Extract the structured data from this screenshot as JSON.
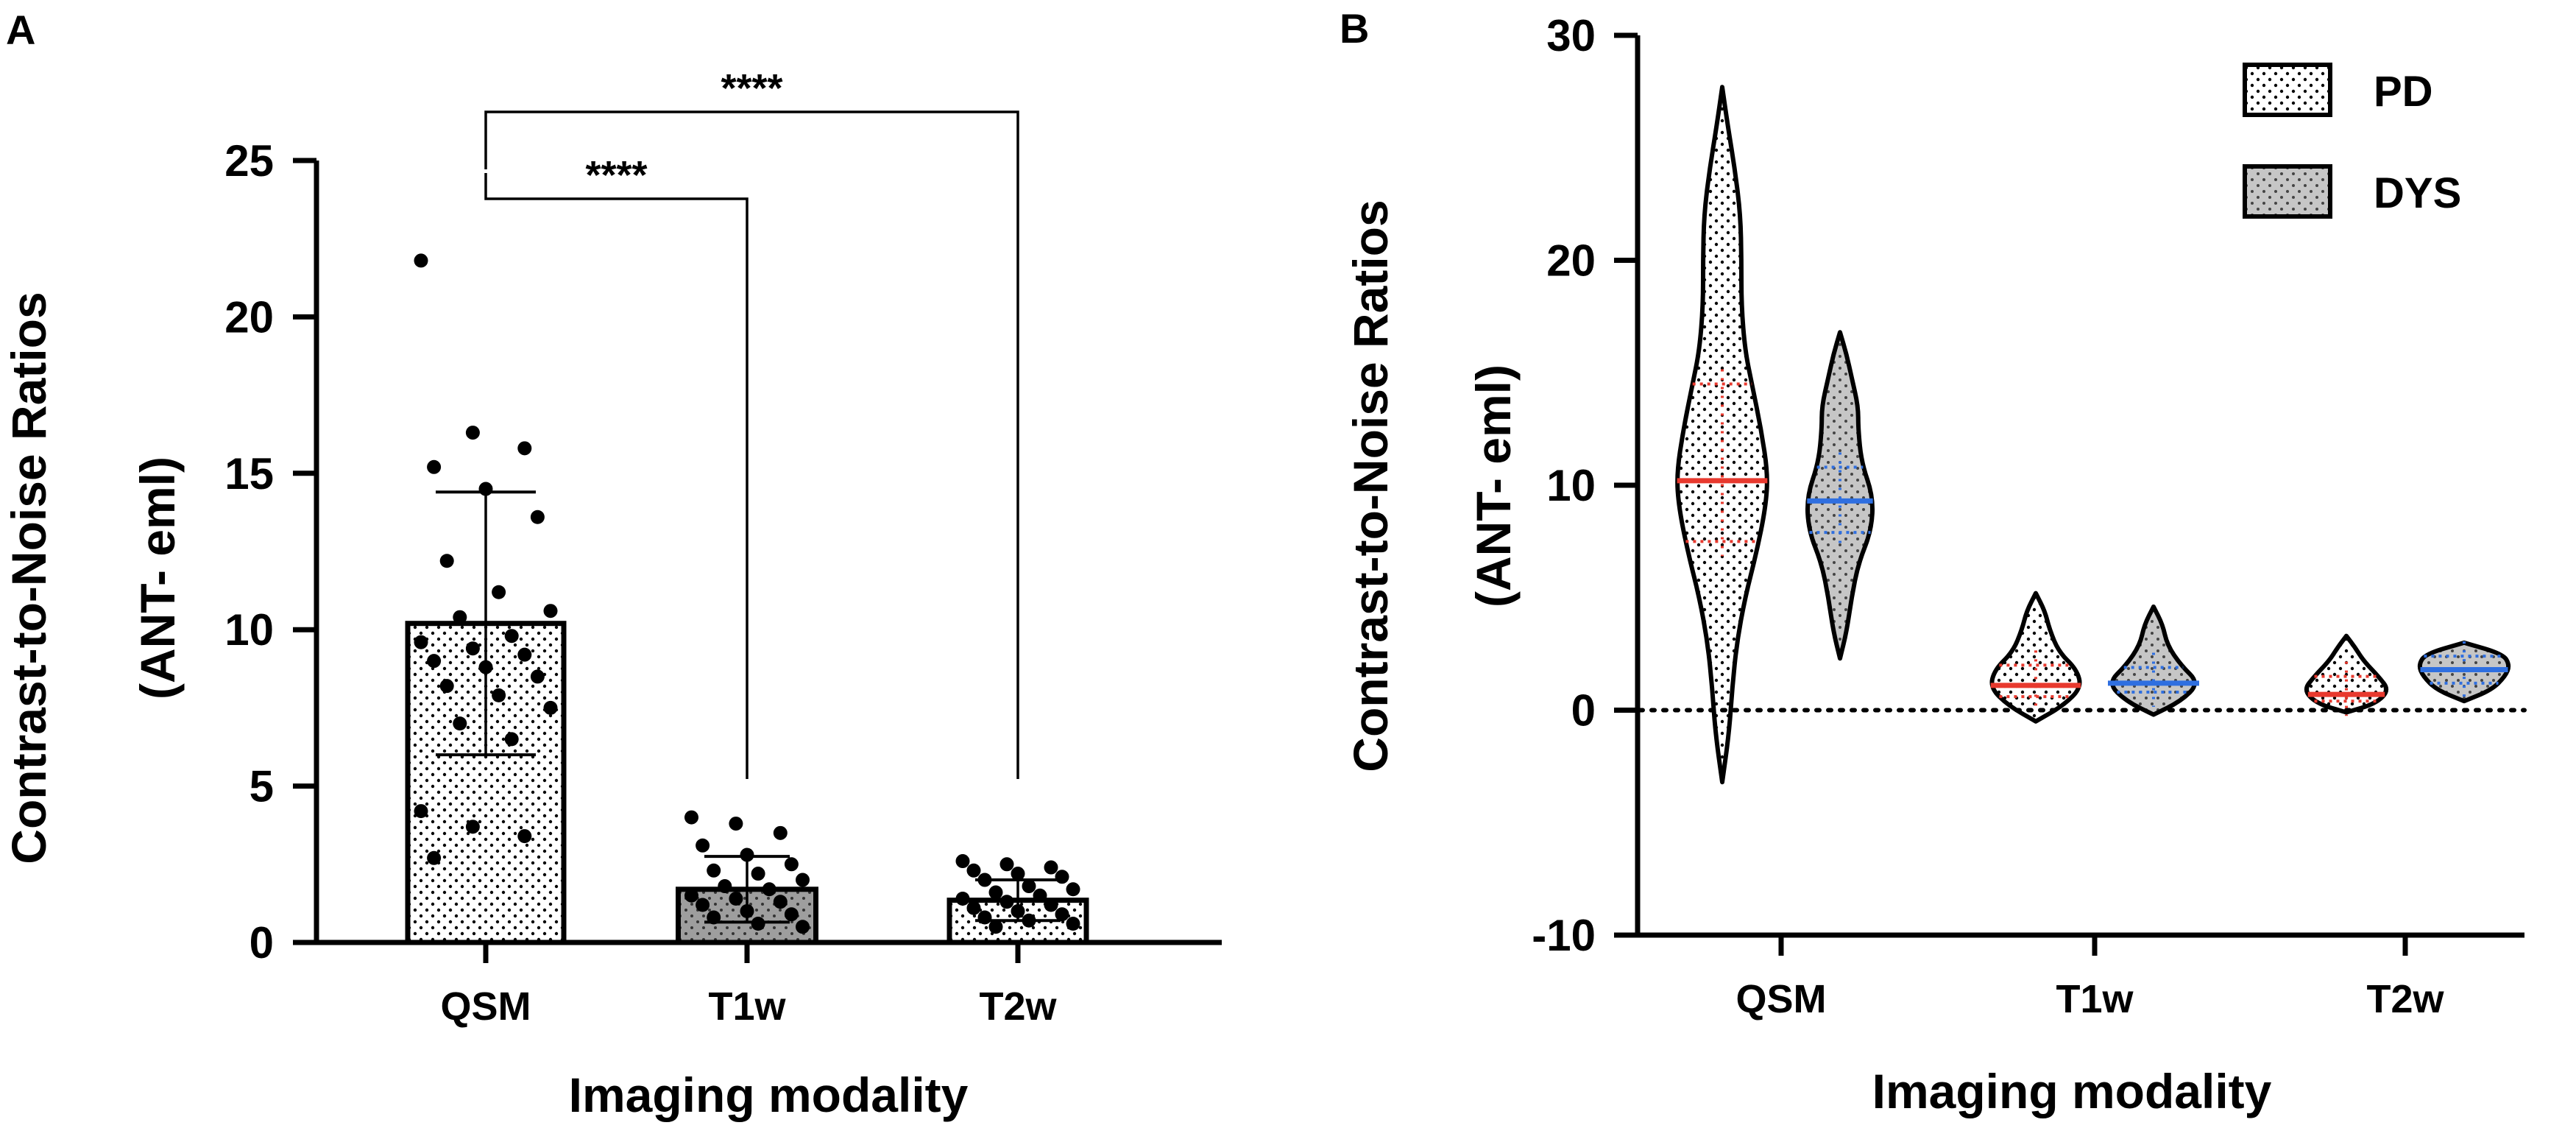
{
  "colors": {
    "ink": "#000000",
    "bar_qsm_fill": "#ffffff",
    "bar_t1w_fill": "#9e9e9e",
    "bar_t2w_fill": "#ffffff",
    "violin_pd_fill": "#ffffff",
    "violin_dys_fill": "#c6c6c6",
    "pd_accent": "#e8392e",
    "dys_accent": "#2f6fe0"
  },
  "chart_data": [
    {
      "panel_label": "A",
      "type": "bar",
      "title": "",
      "xlabel": "Imaging modality",
      "ylabel_line1": "Contrast-to-Noise Ratios",
      "ylabel_line2": "(ANT- eml)",
      "ylim": [
        0,
        25
      ],
      "yticks": [
        0,
        5,
        10,
        15,
        20,
        25
      ],
      "ytick_labels": [
        "0",
        "5",
        "10",
        "15",
        "20",
        "25"
      ],
      "grid": false,
      "categories": [
        "QSM",
        "T1w",
        "T2w"
      ],
      "values": [
        10.2,
        1.7,
        1.35
      ],
      "sd": [
        4.2,
        1.05,
        0.65
      ],
      "points": [
        [
          21.8,
          16.3,
          15.8,
          15.2,
          14.5,
          13.6,
          12.2,
          11.2,
          10.6,
          10.4,
          9.8,
          9.6,
          9.4,
          9.2,
          9.0,
          8.8,
          8.5,
          8.2,
          7.9,
          7.5,
          7.0,
          6.5,
          4.2,
          3.7,
          3.4,
          2.7
        ],
        [
          4.0,
          3.8,
          3.5,
          3.1,
          2.8,
          2.5,
          2.3,
          2.2,
          2.0,
          1.8,
          1.7,
          1.5,
          1.4,
          1.3,
          1.2,
          1.0,
          0.9,
          0.8,
          0.6,
          0.5
        ],
        [
          2.6,
          2.5,
          2.4,
          2.3,
          2.2,
          2.1,
          2.0,
          1.8,
          1.7,
          1.6,
          1.5,
          1.4,
          1.3,
          1.2,
          1.1,
          1.0,
          0.9,
          0.8,
          0.7,
          0.6,
          0.5
        ]
      ],
      "comparisons": [
        {
          "from": "QSM",
          "to": "T1w",
          "label": "****"
        },
        {
          "from": "QSM",
          "to": "T2w",
          "label": "****"
        }
      ]
    },
    {
      "panel_label": "B",
      "type": "violin",
      "title": "",
      "xlabel": "Imaging modality",
      "ylabel_line1": "Contrast-to-Noise Ratios",
      "ylabel_line2": "(ANT- eml)",
      "ylim": [
        -10,
        30
      ],
      "yticks": [
        -10,
        0,
        10,
        20,
        30
      ],
      "ytick_labels": [
        "-10",
        "0",
        "10",
        "20",
        "30"
      ],
      "grid": false,
      "reference_line": 0,
      "categories": [
        "QSM",
        "T1w",
        "T2w"
      ],
      "legend": {
        "placement": "top-right",
        "entries": [
          {
            "name": "PD",
            "fill": "#ffffff",
            "pattern": "dotted"
          },
          {
            "name": "DYS",
            "fill": "#c6c6c6",
            "pattern": "dotted"
          }
        ]
      },
      "series": [
        {
          "name": "PD",
          "range": [
            [
              -3.2,
              27.7
            ],
            [
              -0.5,
              5.2
            ],
            [
              -0.1,
              3.3
            ]
          ],
          "median": [
            10.2,
            1.1,
            0.7
          ],
          "quartiles": [
            [
              7.5,
              14.5
            ],
            [
              0.6,
              2.0
            ],
            [
              0.4,
              1.5
            ]
          ],
          "density": [
            [
              [
                -3.2,
                0
              ],
              [
                -1,
                0.15
              ],
              [
                1,
                0.22
              ],
              [
                3,
                0.32
              ],
              [
                5,
                0.5
              ],
              [
                7,
                0.75
              ],
              [
                9,
                0.95
              ],
              [
                10.5,
                1.0
              ],
              [
                12.5,
                0.85
              ],
              [
                14.5,
                0.65
              ],
              [
                16,
                0.5
              ],
              [
                18,
                0.42
              ],
              [
                20,
                0.42
              ],
              [
                22,
                0.4
              ],
              [
                24,
                0.28
              ],
              [
                26,
                0.12
              ],
              [
                27.7,
                0
              ]
            ],
            [
              [
                -0.5,
                0
              ],
              [
                0.2,
                0.6
              ],
              [
                1.0,
                1.0
              ],
              [
                1.8,
                0.9
              ],
              [
                2.6,
                0.5
              ],
              [
                3.6,
                0.3
              ],
              [
                4.4,
                0.2
              ],
              [
                5.2,
                0
              ]
            ],
            [
              [
                -0.1,
                0
              ],
              [
                0.3,
                0.7
              ],
              [
                0.9,
                1.0
              ],
              [
                1.5,
                0.75
              ],
              [
                2.2,
                0.4
              ],
              [
                2.8,
                0.2
              ],
              [
                3.3,
                0
              ]
            ]
          ]
        },
        {
          "name": "DYS",
          "range": [
            [
              2.3,
              16.8
            ],
            [
              -0.2,
              4.6
            ],
            [
              0.4,
              3.0
            ]
          ],
          "median": [
            9.3,
            1.2,
            1.8
          ],
          "quartiles": [
            [
              7.9,
              10.8
            ],
            [
              0.8,
              1.9
            ],
            [
              1.2,
              2.4
            ]
          ],
          "density": [
            [
              [
                2.3,
                0
              ],
              [
                3.5,
                0.2
              ],
              [
                5,
                0.35
              ],
              [
                6.5,
                0.55
              ],
              [
                8,
                0.95
              ],
              [
                9.5,
                1.0
              ],
              [
                11,
                0.65
              ],
              [
                12.5,
                0.55
              ],
              [
                13.5,
                0.55
              ],
              [
                14.8,
                0.35
              ],
              [
                15.8,
                0.2
              ],
              [
                16.8,
                0
              ]
            ],
            [
              [
                -0.2,
                0
              ],
              [
                0.4,
                0.6
              ],
              [
                1.2,
                1.0
              ],
              [
                2.0,
                0.6
              ],
              [
                2.9,
                0.3
              ],
              [
                3.8,
                0.2
              ],
              [
                4.6,
                0
              ]
            ],
            [
              [
                0.4,
                0
              ],
              [
                0.9,
                0.6
              ],
              [
                1.5,
                0.9
              ],
              [
                2.0,
                1.0
              ],
              [
                2.5,
                0.85
              ],
              [
                3.0,
                0
              ]
            ]
          ]
        }
      ]
    }
  ]
}
